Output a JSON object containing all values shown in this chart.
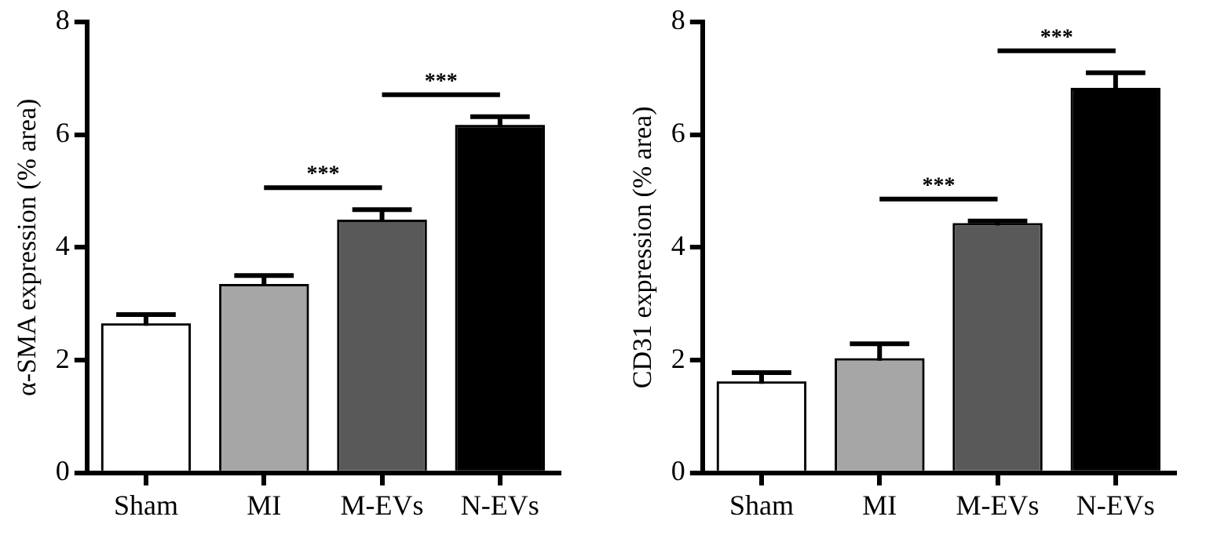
{
  "chart_data": [
    {
      "type": "bar",
      "ylabel": "α-SMA expression (% area)",
      "categories": [
        "Sham",
        "MI",
        "M-EVs",
        "N-EVs"
      ],
      "values": [
        2.61,
        3.31,
        4.45,
        6.13
      ],
      "errors": [
        0.2,
        0.19,
        0.22,
        0.19
      ],
      "colors": [
        "#ffffff",
        "#a6a6a6",
        "#595959",
        "#000000"
      ],
      "ylim": [
        0,
        8
      ],
      "yticks": [
        0,
        2,
        4,
        6,
        8
      ],
      "annotations": [
        "***",
        "***"
      ]
    },
    {
      "type": "bar",
      "ylabel": "CD31 expression (% area)",
      "categories": [
        "Sham",
        "MI",
        "M-EVs",
        "N-EVs"
      ],
      "values": [
        1.58,
        1.99,
        4.39,
        6.79
      ],
      "errors": [
        0.2,
        0.3,
        0.08,
        0.31
      ],
      "colors": [
        "#ffffff",
        "#a6a6a6",
        "#595959",
        "#000000"
      ],
      "ylim": [
        0,
        8
      ],
      "yticks": [
        0,
        2,
        4,
        6,
        8
      ],
      "annotations": [
        "***",
        "***"
      ]
    }
  ]
}
